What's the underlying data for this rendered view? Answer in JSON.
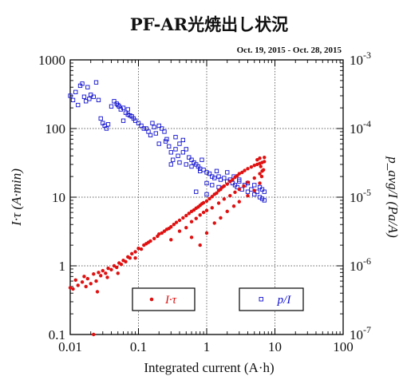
{
  "chart_data": {
    "type": "scatter",
    "title": "PF-AR光焼出し状況",
    "subtitle": "Oct. 19, 2015 - Oct. 28, 2015",
    "xlabel": "Integrated current (A·h)",
    "ylabel_left": "I·τ (A·min)",
    "ylabel_right": "p_avg/I (Pa/A)",
    "x_scale": "log",
    "y_scale": "log",
    "xlim": [
      0.01,
      100
    ],
    "ylim_left": [
      0.1,
      1000
    ],
    "ylim_right": [
      1e-07,
      0.001
    ],
    "grid": true,
    "x_ticks": [
      "0.01",
      "0.1",
      "1",
      "10",
      "100"
    ],
    "y_left_ticks": [
      "0.1",
      "1",
      "10",
      "100",
      "1000"
    ],
    "y_right_ticks": [
      {
        "base": "10",
        "exp": "-7"
      },
      {
        "base": "10",
        "exp": "-6"
      },
      {
        "base": "10",
        "exp": "-5"
      },
      {
        "base": "10",
        "exp": "-4"
      },
      {
        "base": "10",
        "exp": "-3"
      }
    ],
    "legend": [
      {
        "label": "I·τ",
        "color": "#e01010",
        "marker": "filled-circle",
        "axis": "left"
      },
      {
        "label": "p/I",
        "color": "#1010d0",
        "marker": "open-square",
        "axis": "right"
      }
    ],
    "series": [
      {
        "name": "I·τ",
        "axis": "left",
        "color": "#e01010",
        "points": [
          [
            0.01,
            0.48
          ],
          [
            0.011,
            0.46
          ],
          [
            0.012,
            0.62
          ],
          [
            0.013,
            0.52
          ],
          [
            0.015,
            0.58
          ],
          [
            0.016,
            0.7
          ],
          [
            0.017,
            0.5
          ],
          [
            0.018,
            0.65
          ],
          [
            0.02,
            0.55
          ],
          [
            0.022,
            0.76
          ],
          [
            0.024,
            0.6
          ],
          [
            0.026,
            0.8
          ],
          [
            0.028,
            0.72
          ],
          [
            0.03,
            0.85
          ],
          [
            0.033,
            0.78
          ],
          [
            0.036,
            0.92
          ],
          [
            0.04,
            0.88
          ],
          [
            0.044,
            1.0
          ],
          [
            0.048,
            0.95
          ],
          [
            0.052,
            1.1
          ],
          [
            0.056,
            1.05
          ],
          [
            0.06,
            1.2
          ],
          [
            0.065,
            1.15
          ],
          [
            0.07,
            1.35
          ],
          [
            0.075,
            1.3
          ],
          [
            0.08,
            1.5
          ],
          [
            0.09,
            1.6
          ],
          [
            0.1,
            1.8
          ],
          [
            0.11,
            1.75
          ],
          [
            0.12,
            2.0
          ],
          [
            0.13,
            2.1
          ],
          [
            0.14,
            2.2
          ],
          [
            0.15,
            2.3
          ],
          [
            0.17,
            2.5
          ],
          [
            0.19,
            2.7
          ],
          [
            0.2,
            2.9
          ],
          [
            0.22,
            3.0
          ],
          [
            0.24,
            3.2
          ],
          [
            0.26,
            3.4
          ],
          [
            0.28,
            3.5
          ],
          [
            0.3,
            3.7
          ],
          [
            0.33,
            4.0
          ],
          [
            0.36,
            4.3
          ],
          [
            0.4,
            4.6
          ],
          [
            0.45,
            5.0
          ],
          [
            0.5,
            5.4
          ],
          [
            0.55,
            5.8
          ],
          [
            0.6,
            6.2
          ],
          [
            0.65,
            6.5
          ],
          [
            0.7,
            6.9
          ],
          [
            0.75,
            7.2
          ],
          [
            0.8,
            7.6
          ],
          [
            0.85,
            8.0
          ],
          [
            0.9,
            8.3
          ],
          [
            1.0,
            8.8
          ],
          [
            1.1,
            9.5
          ],
          [
            1.2,
            10.2
          ],
          [
            1.3,
            11.0
          ],
          [
            1.4,
            11.5
          ],
          [
            1.5,
            12.5
          ],
          [
            1.6,
            13.0
          ],
          [
            1.7,
            14.0
          ],
          [
            1.8,
            14.5
          ],
          [
            2.0,
            15.5
          ],
          [
            2.2,
            17.0
          ],
          [
            2.4,
            18.0
          ],
          [
            2.6,
            19.5
          ],
          [
            2.8,
            20.5
          ],
          [
            3.0,
            22.0
          ],
          [
            3.3,
            23.0
          ],
          [
            3.6,
            24.5
          ],
          [
            4.0,
            26.0
          ],
          [
            4.5,
            27.5
          ],
          [
            5.0,
            29.0
          ],
          [
            5.5,
            30.0
          ],
          [
            6.0,
            31.0
          ],
          [
            6.5,
            32.0
          ],
          [
            7.0,
            33.0
          ],
          [
            0.3,
            2.4
          ],
          [
            0.4,
            3.2
          ],
          [
            0.5,
            3.6
          ],
          [
            0.6,
            4.4
          ],
          [
            0.7,
            4.9
          ],
          [
            0.8,
            5.5
          ],
          [
            0.9,
            6.0
          ],
          [
            1.0,
            6.4
          ],
          [
            1.2,
            7.0
          ],
          [
            1.5,
            8.2
          ],
          [
            1.8,
            9.4
          ],
          [
            2.2,
            10.5
          ],
          [
            2.6,
            11.8
          ],
          [
            3.0,
            13.0
          ],
          [
            3.5,
            14.5
          ],
          [
            4.0,
            16.5
          ],
          [
            5.0,
            19.0
          ],
          [
            6.0,
            22.0
          ],
          [
            0.6,
            2.6
          ],
          [
            0.8,
            2.0
          ],
          [
            1.0,
            3.0
          ],
          [
            1.3,
            4.2
          ],
          [
            1.6,
            5.0
          ],
          [
            2.0,
            6.2
          ],
          [
            2.5,
            7.4
          ],
          [
            3.0,
            8.6
          ],
          [
            4.0,
            10.5
          ],
          [
            5.0,
            12.5
          ],
          [
            6.0,
            16.0
          ],
          [
            6.5,
            24.0
          ],
          [
            5.5,
            35.0
          ],
          [
            6.0,
            37.0
          ],
          [
            6.2,
            28.0
          ],
          [
            6.8,
            25.0
          ],
          [
            7.0,
            38.0
          ],
          [
            6.4,
            20.0
          ],
          [
            0.05,
            0.78
          ],
          [
            0.09,
            1.3
          ],
          [
            0.035,
            0.68
          ],
          [
            0.025,
            0.42
          ],
          [
            0.022,
            0.1
          ]
        ]
      },
      {
        "name": "p/I",
        "axis": "right",
        "color": "#1010d0",
        "points": [
          [
            0.01,
            0.0003
          ],
          [
            0.011,
            0.00026
          ],
          [
            0.012,
            0.00034
          ],
          [
            0.013,
            0.00022
          ],
          [
            0.014,
            0.00042
          ],
          [
            0.015,
            0.00045
          ],
          [
            0.016,
            0.00029
          ],
          [
            0.017,
            0.00025
          ],
          [
            0.018,
            0.0004
          ],
          [
            0.019,
            0.00027
          ],
          [
            0.02,
            0.00031
          ],
          [
            0.022,
            0.00029
          ],
          [
            0.024,
            0.00047
          ],
          [
            0.026,
            0.00026
          ],
          [
            0.028,
            0.00014
          ],
          [
            0.03,
            0.00012
          ],
          [
            0.032,
            0.00011
          ],
          [
            0.034,
            0.0001
          ],
          [
            0.036,
            0.000115
          ],
          [
            0.04,
            0.00021
          ],
          [
            0.044,
            0.00025
          ],
          [
            0.048,
            0.00023
          ],
          [
            0.05,
            0.00022
          ],
          [
            0.052,
            0.00021
          ],
          [
            0.055,
            0.00019
          ],
          [
            0.06,
            0.00013
          ],
          [
            0.065,
            0.00017
          ],
          [
            0.07,
            0.00016
          ],
          [
            0.075,
            0.000155
          ],
          [
            0.08,
            0.00015
          ],
          [
            0.085,
            0.00014
          ],
          [
            0.09,
            0.00013
          ],
          [
            0.1,
            0.00012
          ],
          [
            0.11,
            0.00011
          ],
          [
            0.12,
            0.0001
          ],
          [
            0.13,
            0.0001
          ],
          [
            0.14,
            9e-05
          ],
          [
            0.15,
            8e-05
          ],
          [
            0.16,
            0.00012
          ],
          [
            0.17,
            0.000105
          ],
          [
            0.18,
            8.5e-05
          ],
          [
            0.2,
            0.00011
          ],
          [
            0.22,
            0.0001
          ],
          [
            0.24,
            9e-05
          ],
          [
            0.26,
            7e-05
          ],
          [
            0.28,
            5.5e-05
          ],
          [
            0.3,
            4.5e-05
          ],
          [
            0.32,
            3.5e-05
          ],
          [
            0.35,
            5e-05
          ],
          [
            0.38,
            4e-05
          ],
          [
            0.4,
            6e-05
          ],
          [
            0.45,
            4.5e-05
          ],
          [
            0.5,
            5e-05
          ],
          [
            0.55,
            3.8e-05
          ],
          [
            0.6,
            3.5e-05
          ],
          [
            0.65,
            3.2e-05
          ],
          [
            0.7,
            3e-05
          ],
          [
            0.75,
            2.8e-05
          ],
          [
            0.8,
            2.6e-05
          ],
          [
            0.85,
            3.5e-05
          ],
          [
            0.9,
            2.5e-05
          ],
          [
            1.0,
            2.3e-05
          ],
          [
            1.1,
            2.2e-05
          ],
          [
            1.2,
            2e-05
          ],
          [
            1.3,
            1.9e-05
          ],
          [
            1.4,
            2.4e-05
          ],
          [
            1.5,
            2e-05
          ],
          [
            1.6,
            1.8e-05
          ],
          [
            1.8,
            1.9e-05
          ],
          [
            2.0,
            1.7e-05
          ],
          [
            2.2,
            1.8e-05
          ],
          [
            2.4,
            1.6e-05
          ],
          [
            2.6,
            1.5e-05
          ],
          [
            2.8,
            1.4e-05
          ],
          [
            3.0,
            1.7e-05
          ],
          [
            3.3,
            1.3e-05
          ],
          [
            3.6,
            1.5e-05
          ],
          [
            4.0,
            1.2e-05
          ],
          [
            4.5,
            1.3e-05
          ],
          [
            5.0,
            1.1e-05
          ],
          [
            5.5,
            1.2e-05
          ],
          [
            6.0,
            1e-05
          ],
          [
            6.5,
            9.5e-06
          ],
          [
            7.0,
            9e-06
          ],
          [
            0.3,
            3e-05
          ],
          [
            0.4,
            3.2e-05
          ],
          [
            0.5,
            3e-05
          ],
          [
            0.6,
            2.8e-05
          ],
          [
            0.8,
            2.4e-05
          ],
          [
            1.0,
            1.6e-05
          ],
          [
            1.2,
            1.5e-05
          ],
          [
            1.5,
            1.4e-05
          ],
          [
            2.0,
            2.3e-05
          ],
          [
            2.5,
            2e-05
          ],
          [
            3.0,
            1.8e-05
          ],
          [
            4.0,
            1.6e-05
          ],
          [
            5.0,
            1.5e-05
          ],
          [
            6.0,
            1.4e-05
          ],
          [
            6.5,
            1.3e-05
          ],
          [
            7.0,
            1.2e-05
          ],
          [
            0.7,
            1.2e-05
          ],
          [
            1.0,
            1.1e-05
          ],
          [
            0.2,
            6e-05
          ],
          [
            0.25,
            6.5e-05
          ],
          [
            0.35,
            7.5e-05
          ],
          [
            0.45,
            6.8e-05
          ],
          [
            0.06,
            0.0002
          ],
          [
            0.07,
            0.00019
          ]
        ]
      }
    ]
  }
}
